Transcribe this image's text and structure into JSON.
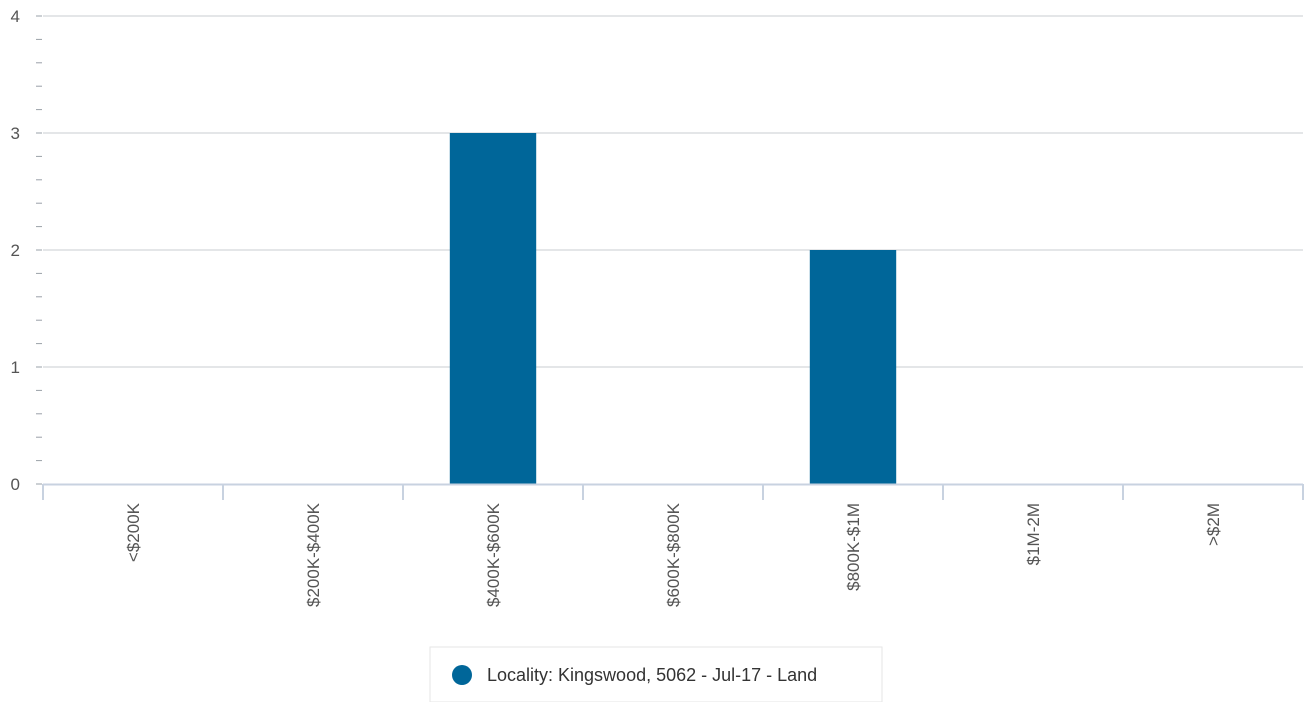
{
  "chart_data": {
    "type": "bar",
    "categories": [
      "<$200K",
      "$200K-$400K",
      "$400K-$600K",
      "$600K-$800K",
      "$800K-$1M",
      "$1M-2M",
      ">$2M"
    ],
    "series": [
      {
        "name": "Locality: Kingswood, 5062 - Jul-17 - Land",
        "values": [
          0,
          0,
          3,
          0,
          2,
          0,
          0
        ]
      }
    ],
    "y_ticks": [
      "0",
      "1",
      "2",
      "3",
      "4"
    ],
    "ylim": [
      0,
      4
    ],
    "grid": true,
    "legend_position": "bottom-center",
    "colors": {
      "bar": "#006699",
      "grid": "#c8ccd2",
      "axis": "#c8d2e0",
      "tick_text": "#555555"
    }
  }
}
